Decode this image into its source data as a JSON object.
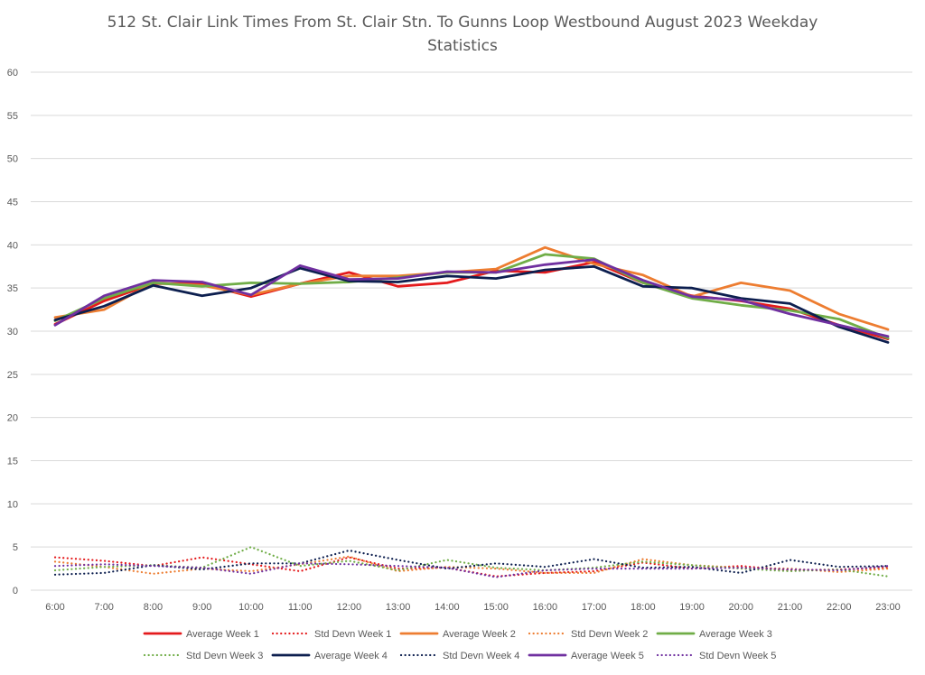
{
  "chart_data": {
    "type": "line",
    "title_line1": "512 St. Clair Link Times From St. Clair Stn. To Gunns Loop Westbound August 2023 Weekday",
    "title_line2": "Statistics",
    "xlabel": "",
    "ylabel": "",
    "ylim": [
      0,
      60
    ],
    "yticks": [
      "0",
      "5",
      "10",
      "15",
      "20",
      "25",
      "30",
      "35",
      "40",
      "45",
      "50",
      "55",
      "60"
    ],
    "categories": [
      "6:00",
      "7:00",
      "8:00",
      "9:00",
      "10:00",
      "11:00",
      "12:00",
      "13:00",
      "14:00",
      "15:00",
      "16:00",
      "17:00",
      "18:00",
      "19:00",
      "20:00",
      "21:00",
      "22:00",
      "23:00"
    ],
    "grid": "horizontal",
    "legend_position": "bottom",
    "series": [
      {
        "name": "Average Week 1",
        "color": "#e41a1c",
        "style": "solid",
        "values": [
          30.8,
          33.5,
          35.5,
          35.5,
          34.0,
          35.5,
          36.8,
          35.2,
          35.6,
          37.0,
          36.8,
          38.0,
          35.6,
          34.1,
          33.5,
          32.6,
          30.7,
          29.1
        ]
      },
      {
        "name": "Std Devn Week 1",
        "color": "#e41a1c",
        "style": "dotted",
        "values": [
          3.8,
          3.4,
          2.8,
          3.8,
          3.0,
          2.2,
          3.8,
          2.5,
          2.6,
          1.6,
          2.0,
          2.2,
          3.2,
          2.5,
          2.8,
          2.3,
          2.4,
          2.6
        ]
      },
      {
        "name": "Average Week 2",
        "color": "#ed7d31",
        "style": "solid",
        "values": [
          31.6,
          32.5,
          35.6,
          35.3,
          34.2,
          35.5,
          36.4,
          36.4,
          36.8,
          37.2,
          39.7,
          37.8,
          36.5,
          34.0,
          35.6,
          34.7,
          32.0,
          30.2
        ]
      },
      {
        "name": "Std Devn Week 2",
        "color": "#ed7d31",
        "style": "dotted",
        "values": [
          3.3,
          2.7,
          1.9,
          2.5,
          2.2,
          3.0,
          3.9,
          2.2,
          2.7,
          2.5,
          2.0,
          2.0,
          3.6,
          2.9,
          2.6,
          2.5,
          2.1,
          2.5
        ]
      },
      {
        "name": "Average Week 3",
        "color": "#70ad47",
        "style": "solid",
        "values": [
          31.2,
          33.8,
          35.6,
          35.2,
          35.6,
          35.5,
          35.7,
          36.2,
          36.8,
          36.8,
          38.9,
          38.4,
          35.6,
          33.8,
          33.0,
          32.4,
          31.4,
          29.2
        ]
      },
      {
        "name": "Std Devn Week 3",
        "color": "#70ad47",
        "style": "dotted",
        "values": [
          2.3,
          2.7,
          2.9,
          2.6,
          5.0,
          2.8,
          3.4,
          2.3,
          3.5,
          2.6,
          2.3,
          2.6,
          3.3,
          2.9,
          2.5,
          2.2,
          2.4,
          1.6
        ]
      },
      {
        "name": "Average Week 4",
        "color": "#0d1f4f",
        "style": "solid",
        "values": [
          31.3,
          32.9,
          35.3,
          34.1,
          35.0,
          37.3,
          35.8,
          35.7,
          36.4,
          36.1,
          37.1,
          37.5,
          35.2,
          35.0,
          33.8,
          33.2,
          30.5,
          28.7
        ]
      },
      {
        "name": "Std Devn Week 4",
        "color": "#0d1f4f",
        "style": "dotted",
        "values": [
          1.8,
          2.0,
          2.9,
          2.4,
          3.1,
          3.1,
          4.6,
          3.5,
          2.5,
          3.1,
          2.7,
          3.6,
          2.6,
          2.7,
          2.0,
          3.5,
          2.7,
          2.8
        ]
      },
      {
        "name": "Average Week 5",
        "color": "#7030a0",
        "style": "solid",
        "values": [
          30.7,
          34.1,
          35.9,
          35.7,
          34.2,
          37.6,
          36.0,
          36.1,
          36.9,
          36.8,
          37.7,
          38.3,
          35.9,
          34.0,
          33.6,
          32.0,
          30.7,
          29.4
        ]
      },
      {
        "name": "Std Devn Week 5",
        "color": "#7030a0",
        "style": "dotted",
        "values": [
          2.8,
          3.0,
          2.8,
          2.6,
          1.9,
          3.1,
          3.0,
          2.8,
          2.6,
          1.5,
          2.3,
          2.5,
          2.5,
          2.5,
          2.6,
          2.4,
          2.3,
          2.8
        ]
      }
    ]
  }
}
